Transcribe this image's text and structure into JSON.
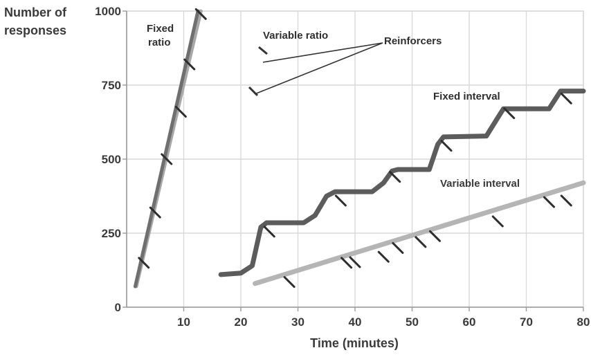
{
  "chart_data": {
    "type": "line",
    "ylabel": "Number of\nresponses",
    "xlabel": "Time (minutes)",
    "xlim": [
      0,
      80
    ],
    "ylim": [
      0,
      1000
    ],
    "x_ticks": [
      "10",
      "20",
      "30",
      "40",
      "50",
      "60",
      "70",
      "80"
    ],
    "y_ticks": [
      "0",
      "250",
      "500",
      "750",
      "1000"
    ],
    "grid": true,
    "series": [
      {
        "name": "Fixed ratio",
        "color": "#6f6f6f",
        "x": [
          1.5,
          12.5
        ],
        "y": [
          70,
          1000
        ],
        "reinforcers_x": [
          3,
          5,
          7,
          9.5,
          11,
          13
        ],
        "reinforcers_y": [
          150,
          320,
          500,
          660,
          820,
          990
        ]
      },
      {
        "name": "Variable ratio",
        "color": "#a8a8a8",
        "x": [
          1.7,
          13
        ],
        "y": [
          70,
          1000
        ]
      },
      {
        "name": "Fixed interval",
        "color": "#5c5c5c",
        "x": [
          16.5,
          20,
          22,
          23.5,
          24.5,
          31,
          33,
          35,
          36.5,
          43,
          45,
          46.5,
          47.5,
          53,
          54.5,
          55.5,
          63,
          65,
          66,
          74,
          76,
          80
        ],
        "y": [
          110,
          115,
          140,
          270,
          285,
          285,
          310,
          375,
          390,
          390,
          420,
          460,
          465,
          465,
          550,
          575,
          578,
          640,
          670,
          670,
          730,
          730
        ],
        "reinforcers_x": [
          25,
          37.5,
          47,
          56,
          67,
          77
        ],
        "reinforcers_y": [
          255,
          360,
          440,
          545,
          655,
          705
        ]
      },
      {
        "name": "Variable interval",
        "color": "#b5b5b5",
        "x": [
          22.5,
          80
        ],
        "y": [
          80,
          420
        ],
        "reinforcers_x": [
          28.5,
          38.5,
          40,
          45,
          47.5,
          51.5,
          54,
          65,
          74,
          77
        ],
        "reinforcers_y": [
          85,
          150,
          152,
          170,
          200,
          220,
          240,
          290,
          355,
          360
        ]
      }
    ],
    "annotations": {
      "fixed_ratio": "Fixed\nratio",
      "variable_ratio": "Variable ratio",
      "reinforcers": "Reinforcers",
      "fixed_interval": "Fixed interval",
      "variable_interval": "Variable interval"
    }
  }
}
